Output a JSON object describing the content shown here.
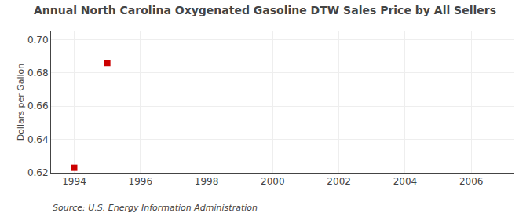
{
  "chart_data": {
    "type": "scatter",
    "title": "Annual North Carolina Oxygenated Gasoline DTW Sales Price by All Sellers",
    "ylabel": "Dollars per Gallon",
    "annotations": [
      "Source: U.S. Energy Information Administration"
    ],
    "x": [
      1994,
      1995
    ],
    "values": [
      0.623,
      0.686
    ],
    "color": "#cc0000",
    "marker": "square",
    "xlim": [
      1993.3,
      2007.3
    ],
    "xticks": [
      1994,
      1996,
      1998,
      2000,
      2002,
      2004,
      2006
    ],
    "ylim": [
      0.62,
      0.705
    ],
    "yticks": [
      0.62,
      0.64,
      0.66,
      0.68,
      {
        "value": 0.7,
        "label": "0.70"
      }
    ],
    "grid": true
  }
}
